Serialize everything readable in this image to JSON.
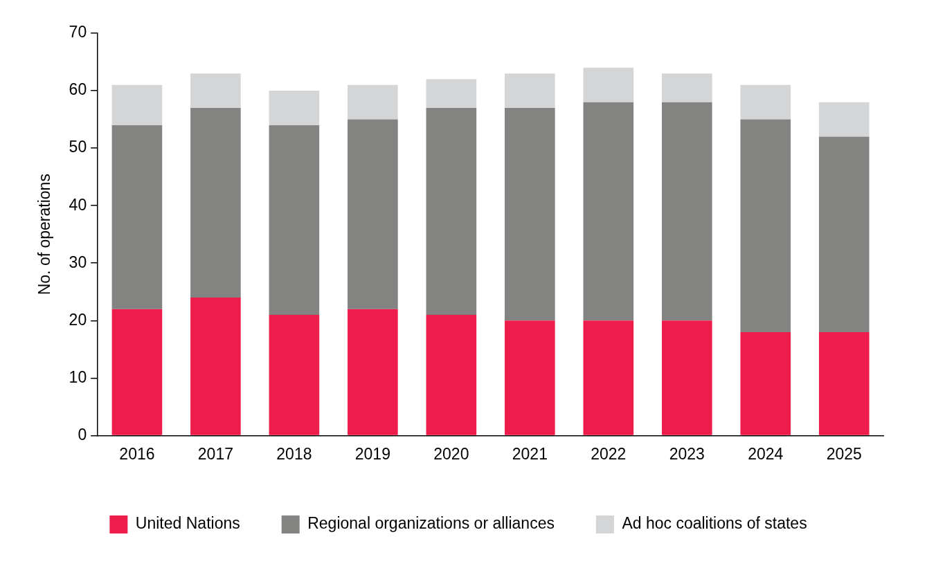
{
  "chart_data": {
    "type": "bar",
    "stacked": true,
    "ylabel": "No. of operations",
    "categories": [
      "2016",
      "2017",
      "2018",
      "2019",
      "2020",
      "2021",
      "2022",
      "2023",
      "2024",
      "2025"
    ],
    "series": [
      {
        "name": "United Nations",
        "color": "#ed1c4a",
        "values": [
          22,
          24,
          21,
          22,
          21,
          20,
          20,
          20,
          18,
          18
        ]
      },
      {
        "name": "Regional organizations or alliances",
        "color": "#838482",
        "values": [
          32,
          33,
          33,
          33,
          36,
          37,
          38,
          38,
          37,
          34
        ]
      },
      {
        "name": "Ad hoc coalitions of states",
        "color": "#d3d5d6",
        "values": [
          7,
          6,
          6,
          6,
          5,
          6,
          6,
          5,
          6,
          6
        ]
      }
    ],
    "ylim": [
      0,
      70
    ],
    "yticks": [
      0,
      10,
      20,
      30,
      40,
      50,
      60,
      70
    ],
    "grid": false,
    "legend": "bottom"
  }
}
